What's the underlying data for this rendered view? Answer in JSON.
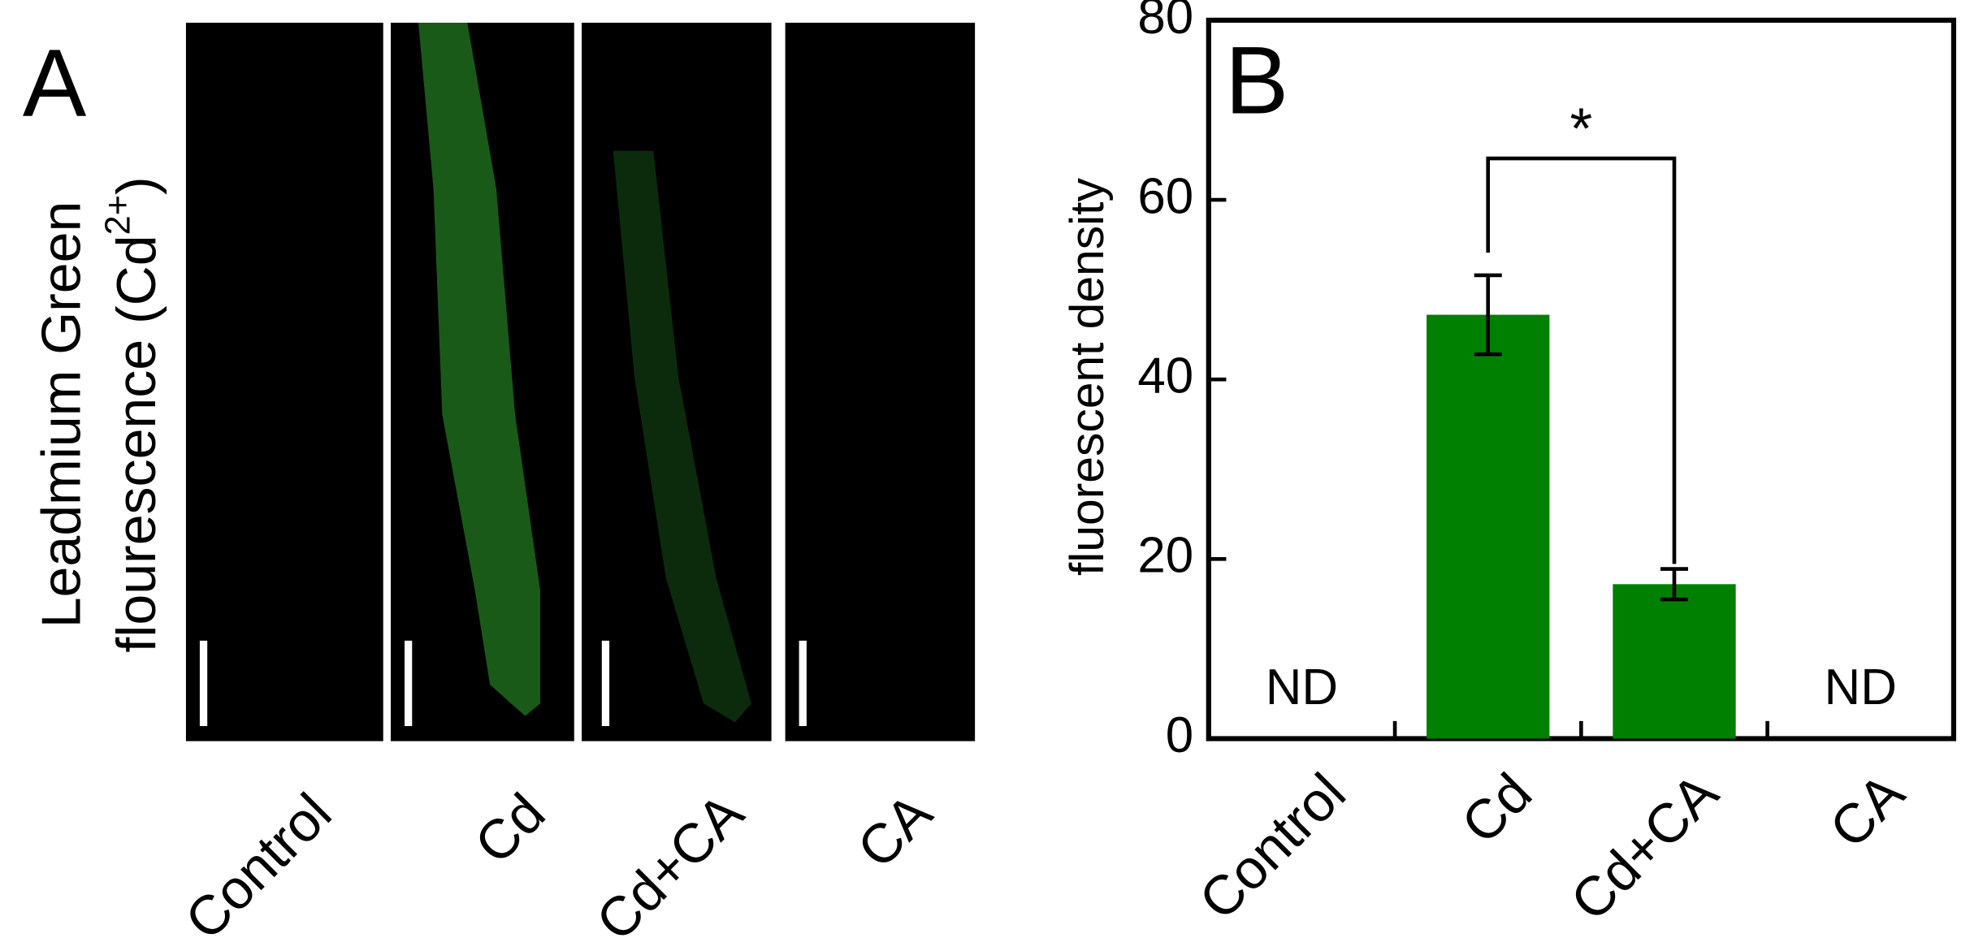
{
  "panel_a": {
    "label": "A",
    "ylabel_line1": "Leadmium Green",
    "ylabel_line2": "flourescence (Cd",
    "ylabel_sup": "2+",
    "ylabel_close": ")",
    "categories": [
      "Control",
      "Cd",
      "Cd+CA",
      "CA"
    ]
  },
  "chart_data": {
    "type": "bar",
    "panel_label": "B",
    "ylabel": "fluorescent density",
    "categories": [
      "Control",
      "Cd",
      "Cd+CA",
      "CA"
    ],
    "values": [
      null,
      47.2,
      17.2,
      null
    ],
    "errors": [
      null,
      4.4,
      1.7,
      null
    ],
    "value_labels": [
      "ND",
      null,
      null,
      "ND"
    ],
    "color": "#008000",
    "ylim": [
      0,
      80
    ],
    "yticks": [
      0,
      20,
      40,
      60,
      80
    ],
    "significance": {
      "between": [
        1,
        2
      ],
      "text": "*"
    }
  }
}
